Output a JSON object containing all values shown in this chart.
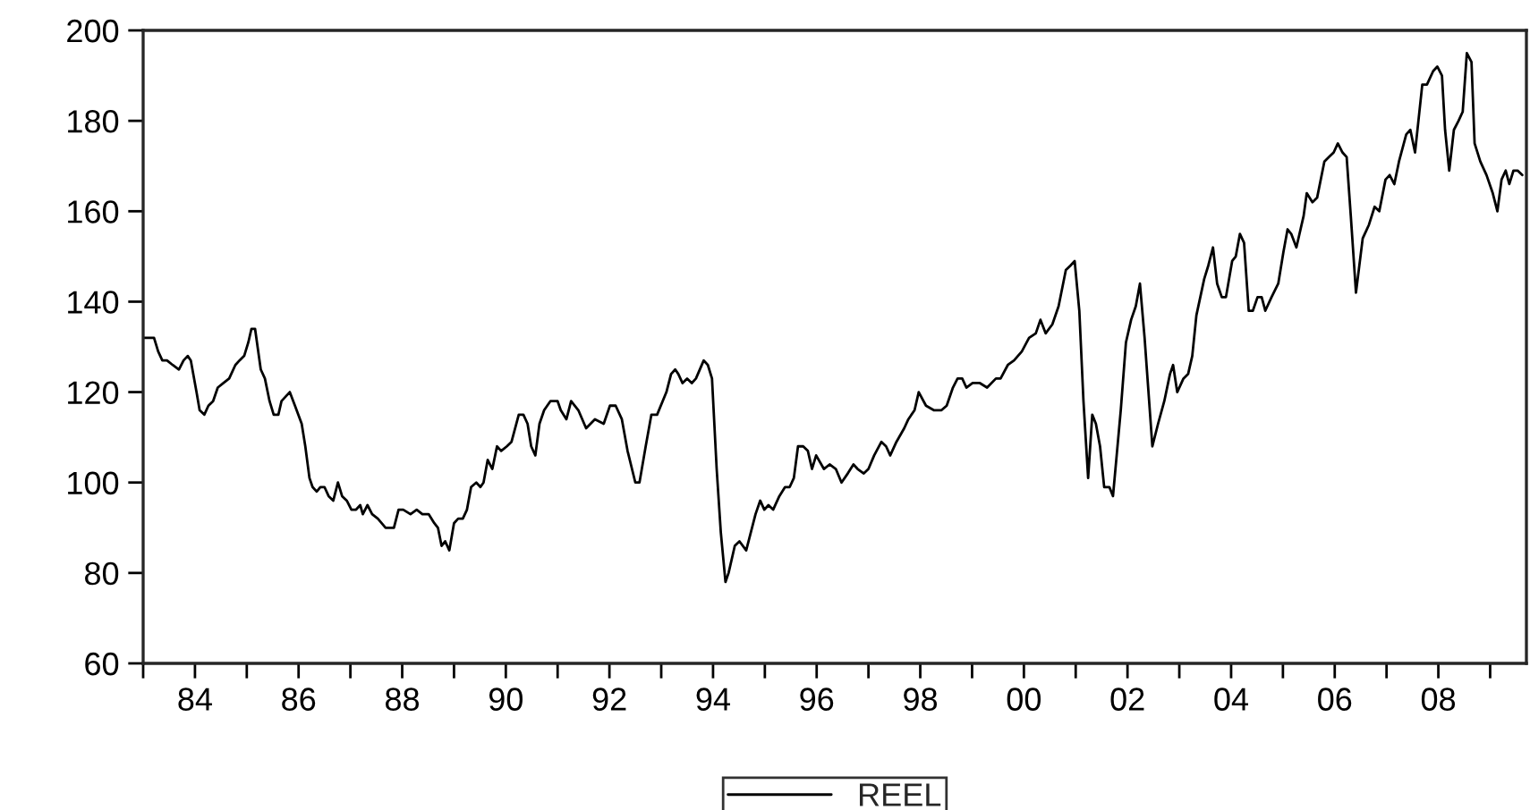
{
  "chart_data": {
    "type": "line",
    "xlim": [
      1983,
      2009.7
    ],
    "xticks": [
      {
        "value": 1983,
        "label": null
      },
      {
        "value": 1984,
        "label": "84"
      },
      {
        "value": 1985,
        "label": null
      },
      {
        "value": 1986,
        "label": "86"
      },
      {
        "value": 1987,
        "label": null
      },
      {
        "value": 1988,
        "label": "88"
      },
      {
        "value": 1989,
        "label": null
      },
      {
        "value": 1990,
        "label": "90"
      },
      {
        "value": 1991,
        "label": null
      },
      {
        "value": 1992,
        "label": "92"
      },
      {
        "value": 1993,
        "label": null
      },
      {
        "value": 1994,
        "label": "94"
      },
      {
        "value": 1995,
        "label": null
      },
      {
        "value": 1996,
        "label": "96"
      },
      {
        "value": 1997,
        "label": null
      },
      {
        "value": 1998,
        "label": "98"
      },
      {
        "value": 1999,
        "label": null
      },
      {
        "value": 2000,
        "label": "00"
      },
      {
        "value": 2001,
        "label": null
      },
      {
        "value": 2002,
        "label": "02"
      },
      {
        "value": 2003,
        "label": null
      },
      {
        "value": 2004,
        "label": "04"
      },
      {
        "value": 2005,
        "label": null
      },
      {
        "value": 2006,
        "label": "06"
      },
      {
        "value": 2007,
        "label": null
      },
      {
        "value": 2008,
        "label": "08"
      },
      {
        "value": 2009,
        "label": null
      }
    ],
    "ylim": [
      60,
      200
    ],
    "yticks": [
      60,
      80,
      100,
      120,
      140,
      160,
      180,
      200
    ],
    "grid": false,
    "legend": "bottom",
    "line_style": "solid",
    "series": [
      {
        "name": "REEL",
        "color": "#000000",
        "x": [
          1983.02,
          1983.08,
          1983.21,
          1983.29,
          1983.37,
          1983.46,
          1983.57,
          1983.69,
          1983.78,
          1983.86,
          1983.92,
          1984.03,
          1984.09,
          1984.18,
          1984.26,
          1984.35,
          1984.44,
          1984.55,
          1984.66,
          1984.78,
          1984.86,
          1984.95,
          1985.03,
          1985.09,
          1985.16,
          1985.27,
          1985.35,
          1985.44,
          1985.52,
          1985.61,
          1985.67,
          1985.83,
          1985.93,
          1986.06,
          1986.13,
          1986.21,
          1986.27,
          1986.35,
          1986.42,
          1986.5,
          1986.58,
          1986.67,
          1986.76,
          1986.84,
          1986.93,
          1987.02,
          1987.11,
          1987.19,
          1987.24,
          1987.33,
          1987.42,
          1987.53,
          1987.68,
          1987.76,
          1987.84,
          1987.93,
          1988.02,
          1988.16,
          1988.28,
          1988.39,
          1988.51,
          1988.62,
          1988.69,
          1988.76,
          1988.83,
          1988.91,
          1989.0,
          1989.08,
          1989.17,
          1989.25,
          1989.33,
          1989.43,
          1989.51,
          1989.57,
          1989.65,
          1989.74,
          1989.83,
          1989.91,
          1990.02,
          1990.11,
          1990.25,
          1990.34,
          1990.42,
          1990.49,
          1990.57,
          1990.65,
          1990.74,
          1990.86,
          1991.0,
          1991.06,
          1991.17,
          1991.26,
          1991.4,
          1991.55,
          1991.72,
          1991.89,
          1992.01,
          1992.12,
          1992.24,
          1992.35,
          1992.5,
          1992.58,
          1992.7,
          1992.81,
          1992.92,
          1993.1,
          1993.19,
          1993.27,
          1993.33,
          1993.41,
          1993.5,
          1993.59,
          1993.67,
          1993.82,
          1993.9,
          1993.98,
          1994.07,
          1994.15,
          1994.24,
          1994.3,
          1994.42,
          1994.51,
          1994.64,
          1994.82,
          1994.91,
          1994.99,
          1995.07,
          1995.16,
          1995.28,
          1995.39,
          1995.48,
          1995.56,
          1995.64,
          1995.74,
          1995.83,
          1995.91,
          1995.99,
          1996.14,
          1996.25,
          1996.37,
          1996.48,
          1996.6,
          1996.71,
          1996.79,
          1996.91,
          1997.0,
          1997.11,
          1997.25,
          1997.34,
          1997.42,
          1997.54,
          1997.69,
          1997.77,
          1997.89,
          1997.97,
          1998.11,
          1998.26,
          1998.41,
          1998.51,
          1998.63,
          1998.72,
          1998.81,
          1998.89,
          1999.01,
          1999.15,
          1999.29,
          1999.46,
          1999.55,
          1999.69,
          1999.81,
          1999.96,
          2000.1,
          2000.23,
          2000.32,
          2000.42,
          2000.55,
          2000.67,
          2000.81,
          2000.9,
          2000.98,
          2001.07,
          2001.15,
          2001.24,
          2001.32,
          2001.39,
          2001.47,
          2001.55,
          2001.65,
          2001.72,
          2001.87,
          2001.97,
          2002.07,
          2002.16,
          2002.24,
          2002.33,
          2002.48,
          2002.59,
          2002.71,
          2002.82,
          2002.88,
          2002.96,
          2003.08,
          2003.17,
          2003.25,
          2003.33,
          2003.48,
          2003.56,
          2003.65,
          2003.73,
          2003.82,
          2003.9,
          2004.02,
          2004.09,
          2004.17,
          2004.25,
          2004.34,
          2004.42,
          2004.51,
          2004.59,
          2004.66,
          2004.78,
          2004.91,
          2005.01,
          2005.09,
          2005.16,
          2005.26,
          2005.4,
          2005.46,
          2005.57,
          2005.66,
          2005.8,
          2005.89,
          2005.98,
          2006.06,
          2006.15,
          2006.23,
          2006.31,
          2006.41,
          2006.54,
          2006.66,
          2006.77,
          2006.86,
          2006.98,
          2007.06,
          2007.15,
          2007.24,
          2007.38,
          2007.46,
          2007.55,
          2007.69,
          2007.78,
          2007.9,
          2007.98,
          2008.07,
          2008.13,
          2008.21,
          2008.3,
          2008.39,
          2008.47,
          2008.55,
          2008.64,
          2008.7,
          2008.81,
          2008.93,
          2009.05,
          2009.14,
          2009.22,
          2009.3,
          2009.37,
          2009.45,
          2009.53,
          2009.62
        ],
        "values": [
          132,
          132,
          132,
          129,
          127,
          127,
          126,
          125,
          127,
          128,
          127,
          120,
          116,
          115,
          117,
          118,
          121,
          122,
          123,
          126,
          127,
          128,
          131,
          134,
          134,
          125,
          123,
          118,
          115,
          115,
          118,
          120,
          117,
          113,
          108,
          101,
          99,
          98,
          99,
          99,
          97,
          96,
          100,
          97,
          96,
          94,
          94,
          95,
          93,
          95,
          93,
          92,
          90,
          90,
          90,
          94,
          94,
          93,
          94,
          93,
          93,
          91,
          90,
          86,
          87,
          85,
          91,
          92,
          92,
          94,
          99,
          100,
          99,
          100,
          105,
          103,
          108,
          107,
          108,
          109,
          115,
          115,
          113,
          108,
          106,
          113,
          116,
          118,
          118,
          116,
          114,
          118,
          116,
          112,
          114,
          113,
          117,
          117,
          114,
          107,
          100,
          100,
          108,
          115,
          115,
          120,
          124,
          125,
          124,
          122,
          123,
          122,
          123,
          127,
          126,
          123,
          103,
          89,
          78,
          80,
          86,
          87,
          85,
          93,
          96,
          94,
          95,
          94,
          97,
          99,
          99,
          101,
          108,
          108,
          107,
          103,
          106,
          103,
          104,
          103,
          100,
          102,
          104,
          103,
          102,
          103,
          106,
          109,
          108,
          106,
          109,
          112,
          114,
          116,
          120,
          117,
          116,
          116,
          117,
          121,
          123,
          123,
          121,
          122,
          122,
          121,
          123,
          123,
          126,
          127,
          129,
          132,
          133,
          136,
          133,
          135,
          139,
          147,
          148,
          149,
          138,
          118,
          101,
          115,
          113,
          108,
          99,
          99,
          97,
          116,
          131,
          136,
          139,
          144,
          132,
          108,
          113,
          118,
          124,
          126,
          120,
          123,
          124,
          128,
          137,
          145,
          148,
          152,
          144,
          141,
          141,
          149,
          150,
          155,
          153,
          138,
          138,
          141,
          141,
          138,
          141,
          144,
          151,
          156,
          155,
          152,
          159,
          164,
          162,
          163,
          171,
          172,
          173,
          175,
          173,
          172,
          159,
          142,
          154,
          157,
          161,
          160,
          167,
          168,
          166,
          171,
          177,
          178,
          173,
          188,
          188,
          191,
          192,
          190,
          178,
          169,
          178,
          180,
          182,
          195,
          193,
          175,
          171,
          168,
          164,
          160,
          167,
          169,
          166,
          169,
          169,
          168
        ]
      }
    ]
  }
}
